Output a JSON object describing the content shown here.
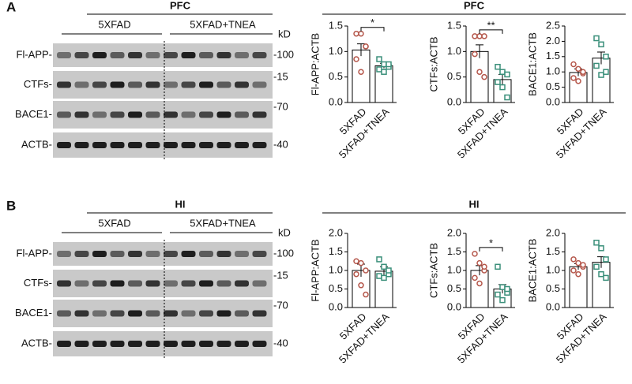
{
  "panels": [
    {
      "label": "A",
      "region": "PFC",
      "groups": [
        "5XFAD",
        "5XFAD+TNEA"
      ],
      "unit": "kD",
      "rows": [
        {
          "name": "Fl-APP-",
          "marker": "-100"
        },
        {
          "name": "CTFs-",
          "marker": "-15"
        },
        {
          "name": "BACE1-",
          "marker": "-70"
        },
        {
          "name": "ACTB-",
          "marker": "-40"
        }
      ],
      "charts_title": "PFC"
    },
    {
      "label": "B",
      "region": "HI",
      "groups": [
        "5XFAD",
        "5XFAD+TNEA"
      ],
      "unit": "kD",
      "rows": [
        {
          "name": "Fl-APP-",
          "marker": "-100"
        },
        {
          "name": "CTFs-",
          "marker": "-15"
        },
        {
          "name": "BACE1-",
          "marker": "-70"
        },
        {
          "name": "ACTB-",
          "marker": "-40"
        }
      ],
      "charts_title": "HI"
    }
  ],
  "chart_data": [
    {
      "type": "bar",
      "ylabel": "Fl-APP:ACTB",
      "categories": [
        "5XFAD",
        "5XFAD+TNEA"
      ],
      "colors": [
        "#b5574b",
        "#3a8f7a"
      ],
      "values": [
        1.03,
        0.72
      ],
      "errors": [
        0.12,
        0.05
      ],
      "points": [
        [
          1.35,
          1.35,
          1.1,
          0.85,
          0.6,
          1.1
        ],
        [
          0.85,
          0.75,
          0.7,
          0.65,
          0.6,
          0.75
        ]
      ],
      "significance": "*",
      "ylim": [
        0,
        1.5
      ],
      "yticks": [
        {
          "value": 0,
          "label": "0.0"
        },
        0.5,
        {
          "value": 1,
          "label": "1.0"
        },
        1.5
      ]
    },
    {
      "type": "bar",
      "ylabel": "CTFs:ACTB",
      "categories": [
        "5XFAD",
        "5XFAD+TNEA"
      ],
      "colors": [
        "#b5574b",
        "#3a8f7a"
      ],
      "values": [
        1.0,
        0.45
      ],
      "errors": [
        0.13,
        0.1
      ],
      "points": [
        [
          1.3,
          1.3,
          1.3,
          0.95,
          0.6,
          0.5
        ],
        [
          0.7,
          0.6,
          0.55,
          0.4,
          0.3,
          0.1
        ]
      ],
      "significance": "**",
      "ylim": [
        0,
        1.5
      ],
      "yticks": [
        {
          "value": 0,
          "label": "0.0"
        },
        0.5,
        {
          "value": 1,
          "label": "1.0"
        },
        1.5
      ]
    },
    {
      "type": "bar",
      "ylabel": "BACE1:ACTB",
      "categories": [
        "5XFAD",
        "5XFAD+TNEA"
      ],
      "colors": [
        "#b5574b",
        "#3a8f7a"
      ],
      "values": [
        0.98,
        1.45
      ],
      "errors": [
        0.12,
        0.2
      ],
      "points": [
        [
          1.25,
          1.1,
          0.95,
          0.8,
          0.7,
          1.0
        ],
        [
          2.1,
          1.9,
          1.5,
          1.2,
          0.9,
          1.0
        ]
      ],
      "ylim": [
        0,
        2.5
      ],
      "yticks": [
        {
          "value": 0,
          "label": "0.0"
        },
        0.5,
        {
          "value": 1,
          "label": "1.0"
        },
        1.5,
        {
          "value": 2,
          "label": "2.0"
        },
        2.5
      ]
    },
    {
      "type": "bar",
      "ylabel": "Fl-APP:ACTB",
      "categories": [
        "5XFAD",
        "5XFAD+TNEA"
      ],
      "colors": [
        "#b5574b",
        "#3a8f7a"
      ],
      "values": [
        1.0,
        0.98
      ],
      "errors": [
        0.17,
        0.12
      ],
      "points": [
        [
          1.25,
          1.2,
          1.0,
          0.9,
          0.6,
          0.35
        ],
        [
          1.3,
          1.1,
          0.9,
          0.85,
          0.8,
          1.0
        ]
      ],
      "ylim": [
        0,
        2
      ],
      "yticks": [
        {
          "value": 0,
          "label": "0.0"
        },
        0.5,
        {
          "value": 1,
          "label": "1.0"
        },
        1.5,
        {
          "value": 2,
          "label": "2.0"
        }
      ]
    },
    {
      "type": "bar",
      "ylabel": "CTFs:ACTB",
      "categories": [
        "5XFAD",
        "5XFAD+TNEA"
      ],
      "colors": [
        "#b5574b",
        "#3a8f7a"
      ],
      "values": [
        1.0,
        0.5
      ],
      "errors": [
        0.13,
        0.12
      ],
      "points": [
        [
          1.45,
          1.2,
          1.0,
          0.8,
          0.65,
          1.1
        ],
        [
          1.1,
          0.55,
          0.4,
          0.35,
          0.2,
          0.5
        ]
      ],
      "significance": "*",
      "ylim": [
        0,
        2
      ],
      "yticks": [
        {
          "value": 0,
          "label": "0.0"
        },
        0.5,
        {
          "value": 1,
          "label": "1.0"
        },
        1.5,
        {
          "value": 2,
          "label": "2.0"
        }
      ]
    },
    {
      "type": "bar",
      "ylabel": "BACE1:ACTB",
      "categories": [
        "5XFAD",
        "5XFAD+TNEA"
      ],
      "colors": [
        "#b5574b",
        "#3a8f7a"
      ],
      "values": [
        1.1,
        1.22
      ],
      "errors": [
        0.08,
        0.15
      ],
      "points": [
        [
          1.3,
          1.2,
          1.1,
          1.0,
          0.9,
          1.15
        ],
        [
          1.75,
          1.6,
          1.3,
          1.1,
          0.9,
          0.8
        ]
      ],
      "ylim": [
        0,
        2
      ],
      "yticks": [
        {
          "value": 0,
          "label": "0.0"
        },
        0.5,
        {
          "value": 1,
          "label": "1.0"
        },
        1.5,
        {
          "value": 2,
          "label": "2.0"
        }
      ]
    }
  ]
}
